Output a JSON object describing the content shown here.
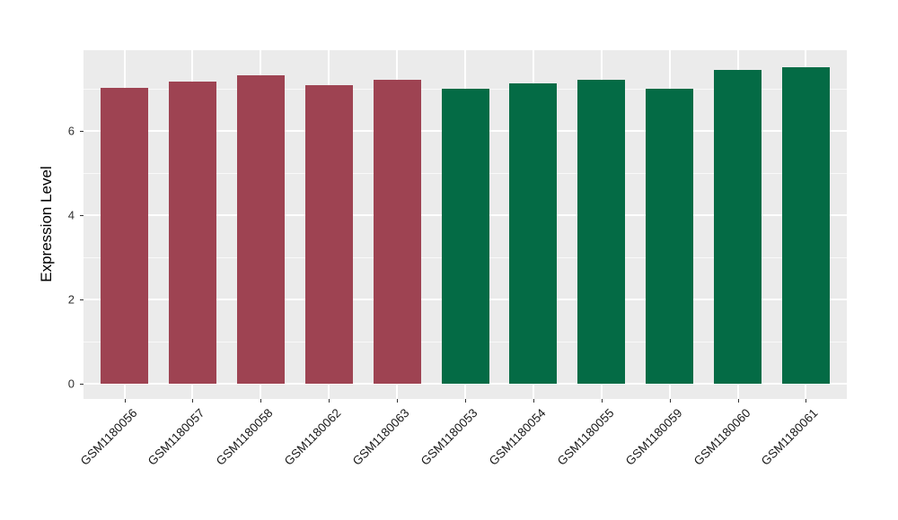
{
  "chart_data": {
    "type": "bar",
    "title": "",
    "xlabel": "",
    "ylabel": "Expression Level",
    "categories": [
      "GSM1180056",
      "GSM1180057",
      "GSM1180058",
      "GSM1180062",
      "GSM1180063",
      "GSM1180053",
      "GSM1180054",
      "GSM1180055",
      "GSM1180059",
      "GSM1180060",
      "GSM1180061"
    ],
    "values": [
      7.03,
      7.16,
      7.32,
      7.09,
      7.22,
      7.01,
      7.13,
      7.21,
      6.99,
      7.45,
      7.52
    ],
    "bar_groups": [
      "A",
      "A",
      "A",
      "A",
      "A",
      "B",
      "B",
      "B",
      "B",
      "B",
      "B"
    ],
    "group_colors": {
      "A": "#9E4352",
      "B": "#046B45"
    },
    "yticks": [
      0,
      2,
      4,
      6
    ],
    "minor_yticks": [
      1,
      3,
      5,
      7
    ],
    "ylim": [
      -0.38,
      7.89
    ],
    "grid": "horizontal major+minor, vertical at category centers",
    "legend_position": "none",
    "panel_background": "#EBEBEB",
    "grid_color": "#FFFFFF",
    "axis_text_color": "#303030",
    "tick_mark_color": "#333333"
  }
}
